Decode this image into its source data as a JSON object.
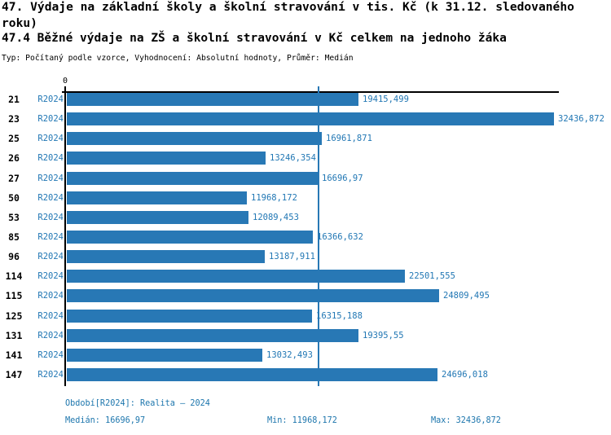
{
  "header": {
    "title_line1": "47. Výdaje na základní školy a školní stravování v tis. Kč (k 31.12. sledovaného",
    "title_line2": "roku)",
    "subtitle": "47.4 Běžné výdaje na ZŠ a školní stravování v Kč celkem na jednoho žáka",
    "meta": "Typ: Počítaný podle vzorce, Vyhodnocení: Absolutní hodnoty, Průměr: Medián"
  },
  "chart_data": {
    "type": "bar",
    "orientation": "horizontal",
    "title": "47.4 Běžné výdaje na ZŠ a školní stravování v Kč celkem na jednoho žáka",
    "categories": [
      "21",
      "23",
      "25",
      "26",
      "27",
      "50",
      "53",
      "85",
      "96",
      "114",
      "115",
      "125",
      "131",
      "141",
      "147"
    ],
    "series": [
      {
        "name": "R2024",
        "values": [
          19415.499,
          32436.872,
          16961.871,
          13246.354,
          16696.97,
          11968.172,
          12089.453,
          16366.632,
          13187.911,
          22501.555,
          24809.495,
          16315.188,
          19395.55,
          13032.493,
          24696.018
        ]
      }
    ],
    "value_labels": [
      "19415,499",
      "32436,872",
      "16961,871",
      "13246,354",
      "16696,97",
      "11968,172",
      "12089,453",
      "16366,632",
      "13187,911",
      "22501,555",
      "24809,495",
      "16315,188",
      "19395,55",
      "13032,493",
      "24696,018"
    ],
    "x_axis": {
      "min": 0,
      "max": 32436.872,
      "zero_tick_label": "0"
    },
    "median_line_value": 16696.97,
    "grid": "off",
    "legend_position": "none"
  },
  "footer": {
    "period": "Období[R2024]: Realita – 2024",
    "median": "Medián: 16696,97",
    "min": "Min: 11968,172",
    "max": "Max: 32436,872"
  },
  "colors": {
    "bar": "#2878b5",
    "value_text": "#2177b4",
    "footer_text": "#1d76ad",
    "title_text": "#000000"
  }
}
